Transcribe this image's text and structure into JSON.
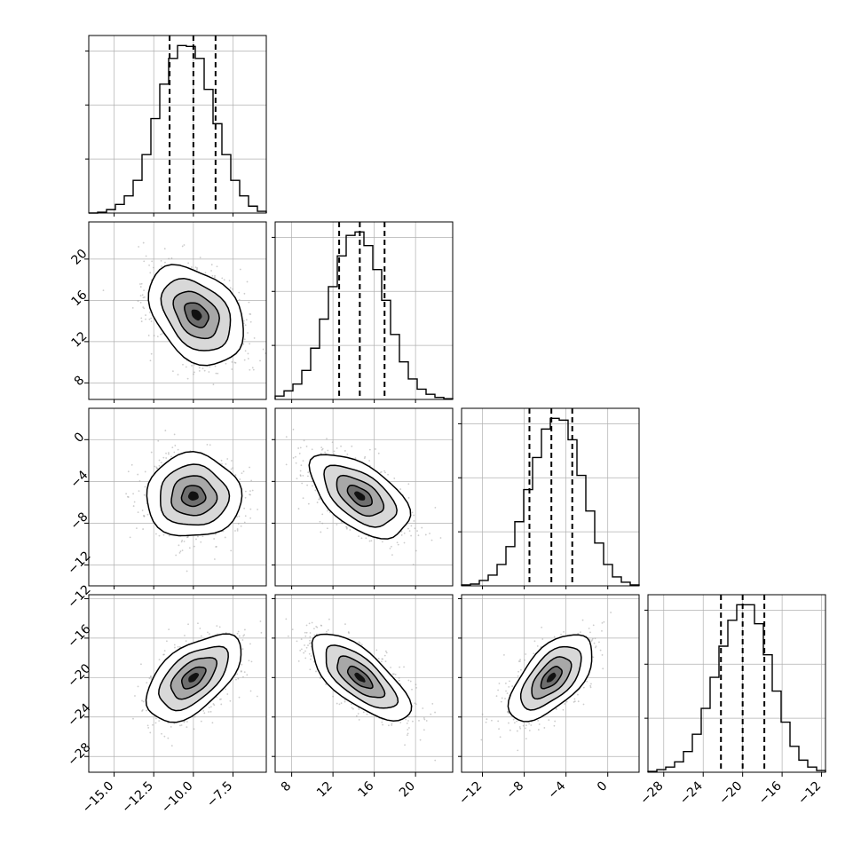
{
  "chart_data": {
    "type": "corner",
    "parameters": [
      "",
      "",
      "",
      ""
    ],
    "grid": true,
    "colors": {
      "line": "#000000",
      "grid": "#b0b0b0",
      "scatter": "#9a9a9a"
    },
    "marginal_histograms": [
      {
        "range": [
          -16.6,
          -5.4
        ],
        "yticks": 3,
        "quantiles": [
          -11.5,
          -10.0,
          -8.6
        ],
        "edges": [
          -16.6,
          -16.04,
          -15.48,
          -14.92,
          -14.36,
          -13.8,
          -13.24,
          -12.68,
          -12.12,
          -11.56,
          -11.0,
          -10.44,
          -9.88,
          -9.32,
          -8.76,
          -8.2,
          -7.64,
          -7.08,
          -6.52,
          -5.96,
          -5.4
        ],
        "counts": [
          0.0,
          0.005,
          0.02,
          0.05,
          0.1,
          0.19,
          0.34,
          0.55,
          0.75,
          0.9,
          0.975,
          0.97,
          0.9,
          0.72,
          0.52,
          0.34,
          0.19,
          0.1,
          0.04,
          0.01
        ]
      },
      {
        "range": [
          6.4,
          23.6
        ],
        "yticks": 3,
        "quantiles": [
          12.6,
          14.6,
          17.0
        ],
        "edges": [
          6.4,
          7.26,
          8.12,
          8.98,
          9.84,
          10.7,
          11.56,
          12.42,
          13.28,
          14.14,
          15.0,
          15.86,
          16.72,
          17.58,
          18.44,
          19.3,
          20.16,
          21.02,
          21.88,
          22.74,
          23.6
        ],
        "counts": [
          0.02,
          0.05,
          0.09,
          0.17,
          0.3,
          0.47,
          0.66,
          0.84,
          0.96,
          0.98,
          0.9,
          0.76,
          0.58,
          0.38,
          0.22,
          0.12,
          0.06,
          0.03,
          0.012,
          0.004
        ]
      },
      {
        "range": [
          -14.0,
          3.0
        ],
        "yticks": 3,
        "quantiles": [
          -7.5,
          -5.4,
          -3.4
        ],
        "edges": [
          -14.0,
          -13.15,
          -12.3,
          -11.45,
          -10.6,
          -9.75,
          -8.9,
          -8.05,
          -7.2,
          -6.35,
          -5.5,
          -4.65,
          -3.8,
          -2.95,
          -2.1,
          -1.25,
          -0.4,
          0.45,
          1.3,
          2.15,
          3.0
        ],
        "counts": [
          0.005,
          0.01,
          0.03,
          0.06,
          0.12,
          0.22,
          0.36,
          0.54,
          0.72,
          0.88,
          0.94,
          0.93,
          0.82,
          0.62,
          0.42,
          0.24,
          0.12,
          0.05,
          0.02,
          0.005
        ]
      },
      {
        "range": [
          -29.6,
          -11.6
        ],
        "yticks": 3,
        "quantiles": [
          -22.2,
          -20.0,
          -17.8
        ],
        "edges": [
          -29.6,
          -28.7,
          -27.8,
          -26.9,
          -26.0,
          -25.1,
          -24.2,
          -23.3,
          -22.4,
          -21.5,
          -20.6,
          -19.7,
          -18.8,
          -17.9,
          -17.0,
          -16.1,
          -15.2,
          -14.3,
          -13.4,
          -12.5,
          -11.6
        ],
        "counts": [
          0.005,
          0.015,
          0.03,
          0.06,
          0.12,
          0.22,
          0.37,
          0.55,
          0.73,
          0.88,
          0.97,
          0.97,
          0.86,
          0.68,
          0.47,
          0.29,
          0.15,
          0.07,
          0.03,
          0.01
        ]
      }
    ],
    "pairs": [
      {
        "row": 1,
        "col": 0,
        "x_center": -9.8,
        "y_center": 14.6,
        "sx": 1.5,
        "sy": 2.4,
        "rho": -0.35
      },
      {
        "row": 2,
        "col": 0,
        "x_center": -10.0,
        "y_center": -5.4,
        "sx": 1.5,
        "sy": 2.0,
        "rho": 0.0
      },
      {
        "row": 2,
        "col": 1,
        "x_center": 14.6,
        "y_center": -5.4,
        "sx": 2.4,
        "sy": 2.0,
        "rho": -0.55
      },
      {
        "row": 3,
        "col": 0,
        "x_center": -10.0,
        "y_center": -20.0,
        "sx": 1.5,
        "sy": 2.2,
        "rho": 0.55
      },
      {
        "row": 3,
        "col": 1,
        "x_center": 14.6,
        "y_center": -20.0,
        "sx": 2.4,
        "sy": 2.2,
        "rho": -0.7
      },
      {
        "row": 3,
        "col": 2,
        "x_center": -5.4,
        "y_center": -20.0,
        "sx": 2.0,
        "sy": 2.2,
        "rho": 0.6
      }
    ],
    "axes": {
      "x_ticks": [
        {
          "values": [
            -15.0,
            -12.5,
            -10.0,
            -7.5
          ],
          "labels": [
            "−15.0",
            "−12.5",
            "−10.0",
            "−7.5"
          ]
        },
        {
          "values": [
            8,
            12,
            16,
            20
          ],
          "labels": [
            "8",
            "12",
            "16",
            "20"
          ]
        },
        {
          "values": [
            -12,
            -8,
            -4,
            0
          ],
          "labels": [
            "−12",
            "−8",
            "−4",
            "0"
          ]
        },
        {
          "values": [
            -28,
            -24,
            -20,
            -16,
            -12
          ],
          "labels": [
            "−28",
            "−24",
            "−20",
            "−16",
            "−12"
          ]
        }
      ],
      "y_ticks": [
        null,
        {
          "values": [
            8,
            12,
            16,
            20
          ],
          "labels": [
            "8",
            "12",
            "16",
            "20"
          ]
        },
        {
          "values": [
            -12,
            -8,
            -4,
            0
          ],
          "labels": [
            "−12",
            "−8",
            "−4",
            "0"
          ]
        },
        {
          "values": [
            -28,
            -24,
            -20,
            -16,
            -12
          ],
          "labels": [
            "−28",
            "−24",
            "−20",
            "−16",
            "−12"
          ]
        }
      ]
    }
  }
}
